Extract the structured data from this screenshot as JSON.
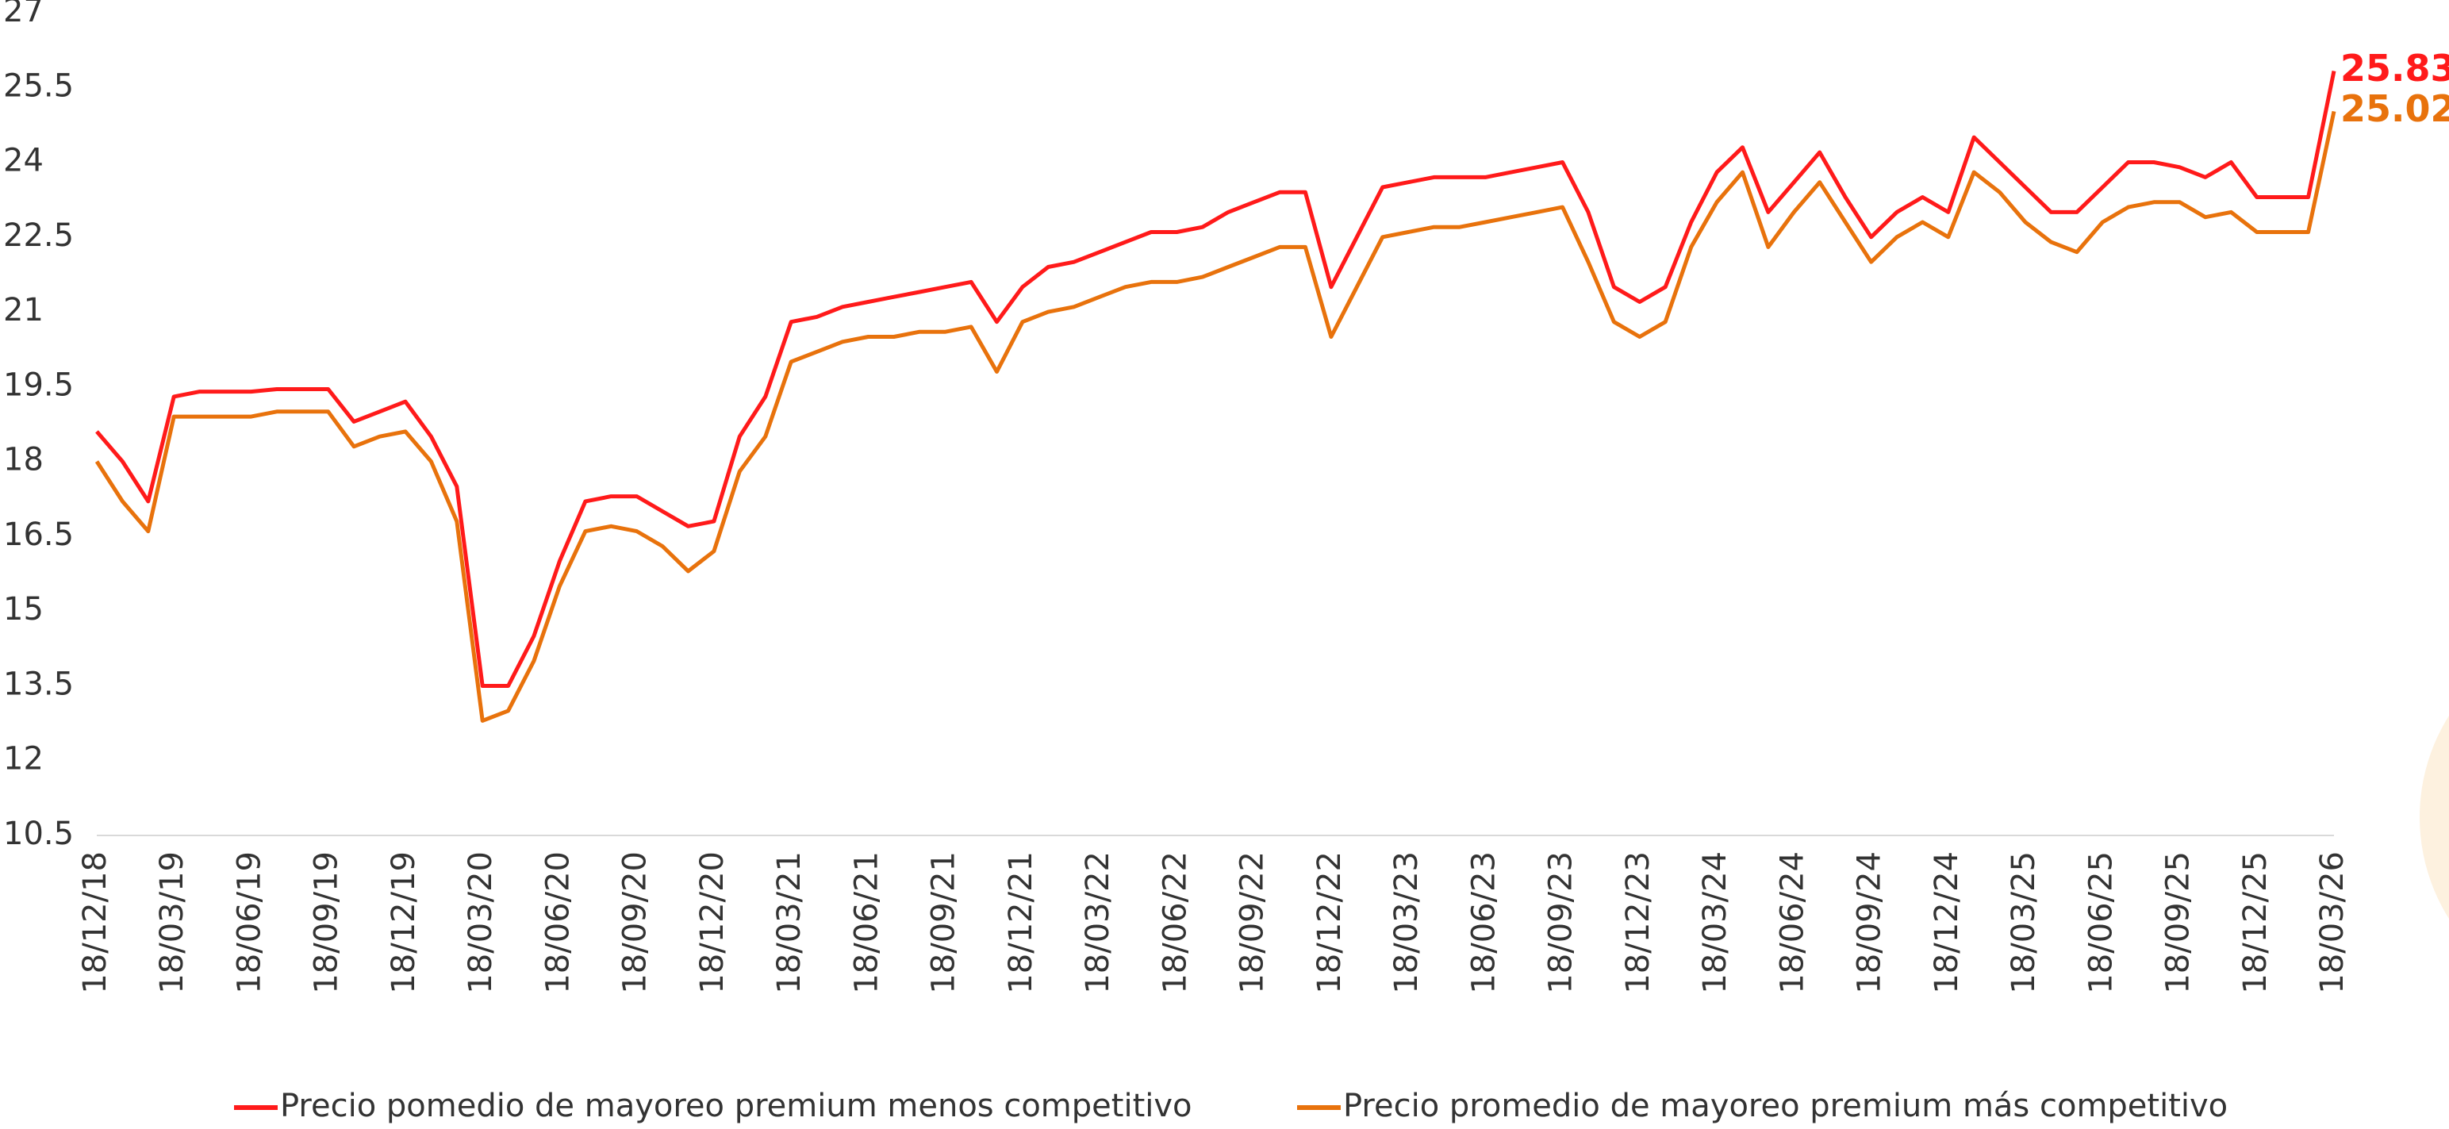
{
  "chart_data": {
    "type": "line",
    "categories": [
      "18/12/18",
      null,
      null,
      "18/03/19",
      null,
      null,
      "18/06/19",
      null,
      null,
      "18/09/19",
      null,
      null,
      "18/12/19",
      null,
      null,
      "18/03/20",
      null,
      null,
      "18/06/20",
      null,
      null,
      "18/09/20",
      null,
      null,
      "18/12/20",
      null,
      null,
      "18/03/21",
      null,
      null,
      "18/06/21",
      null,
      null,
      "18/09/21",
      null,
      null,
      "18/12/21",
      null,
      null,
      "18/03/22",
      null,
      null,
      "18/06/22",
      null,
      null,
      "18/09/22",
      null,
      null,
      "18/12/22",
      null,
      null,
      "18/03/23",
      null,
      null,
      "18/06/23",
      null,
      null,
      "18/09/23",
      null,
      null,
      "18/12/23",
      null,
      null,
      "18/03/24",
      null,
      null,
      "18/06/24",
      null,
      null,
      "18/09/24",
      null,
      null,
      "18/12/24",
      null,
      null,
      "18/03/25",
      null,
      null,
      "18/06/25",
      null,
      null,
      "18/09/25",
      null,
      null,
      "18/12/25",
      null,
      null,
      "18/03/26"
    ],
    "series": [
      {
        "name": "Precio pomedio de mayoreo premium menos competitivo",
        "color": "#ff1a1a",
        "values": [
          18.6,
          18.0,
          17.2,
          19.3,
          19.4,
          19.4,
          19.4,
          19.45,
          19.45,
          19.45,
          18.8,
          19.0,
          19.2,
          18.5,
          17.5,
          13.5,
          13.5,
          14.5,
          16.0,
          17.2,
          17.3,
          17.3,
          17.0,
          16.7,
          16.8,
          18.5,
          19.3,
          20.8,
          20.9,
          21.1,
          21.2,
          21.3,
          21.4,
          21.5,
          21.6,
          20.8,
          21.5,
          21.9,
          22.0,
          22.2,
          22.4,
          22.6,
          22.6,
          22.7,
          23.0,
          23.2,
          23.4,
          23.4,
          21.5,
          22.5,
          23.5,
          23.6,
          23.7,
          23.7,
          23.7,
          23.8,
          23.9,
          24.0,
          23.0,
          21.5,
          21.2,
          21.5,
          22.8,
          23.8,
          24.3,
          23.0,
          23.6,
          24.2,
          23.3,
          22.5,
          23.0,
          23.3,
          23.0,
          24.5,
          24.0,
          23.5,
          23.0,
          23.0,
          23.5,
          24.0,
          24.0,
          23.9,
          23.7,
          24.0,
          23.3,
          23.3,
          23.3,
          25.83
        ]
      },
      {
        "name": "Precio promedio de mayoreo premium más competitivo",
        "color": "#e8720c",
        "values": [
          18.0,
          17.2,
          16.6,
          18.9,
          18.9,
          18.9,
          18.9,
          19.0,
          19.0,
          19.0,
          18.3,
          18.5,
          18.6,
          18.0,
          16.8,
          12.8,
          13.0,
          14.0,
          15.5,
          16.6,
          16.7,
          16.6,
          16.3,
          15.8,
          16.2,
          17.8,
          18.5,
          20.0,
          20.2,
          20.4,
          20.5,
          20.5,
          20.6,
          20.6,
          20.7,
          19.8,
          20.8,
          21.0,
          21.1,
          21.3,
          21.5,
          21.6,
          21.6,
          21.7,
          21.9,
          22.1,
          22.3,
          22.3,
          20.5,
          21.5,
          22.5,
          22.6,
          22.7,
          22.7,
          22.8,
          22.9,
          23.0,
          23.1,
          22.0,
          20.8,
          20.5,
          20.8,
          22.3,
          23.2,
          23.8,
          22.3,
          23.0,
          23.6,
          22.8,
          22.0,
          22.5,
          22.8,
          22.5,
          23.8,
          23.4,
          22.8,
          22.4,
          22.2,
          22.8,
          23.1,
          23.2,
          23.2,
          22.9,
          23.0,
          22.6,
          22.6,
          22.6,
          25.02
        ]
      }
    ],
    "ylim": [
      10.5,
      27
    ],
    "yticks": [
      10.5,
      12,
      13.5,
      15,
      16.5,
      18,
      19.5,
      21,
      22.5,
      24,
      25.5,
      27
    ],
    "grid": false,
    "legend": "bottom"
  }
}
